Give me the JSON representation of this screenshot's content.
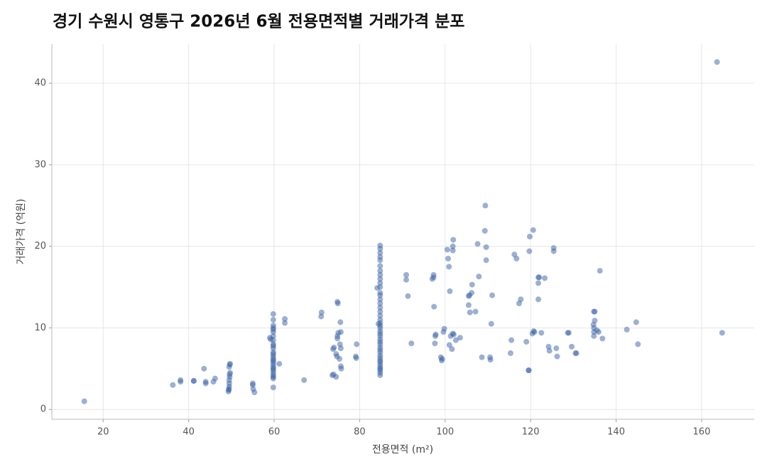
{
  "chart_data": {
    "type": "scatter",
    "title": "경기 수원시 영통구 2026년 6월 전용면적별 거래가격 분포",
    "x_label": "전용면적 (m²)",
    "y_label": "거래가격 (억원)",
    "color": "#3a62a8",
    "grid": true,
    "xlim": [
      8,
      172.3
    ],
    "ylim": [
      -1.2,
      44.8
    ],
    "xticks": [
      20,
      40,
      60,
      80,
      100,
      120,
      140,
      160
    ],
    "yticks": [
      0,
      10,
      20,
      30,
      40
    ],
    "x": [
      15.6,
      36.3,
      38.1,
      38.1,
      41.2,
      41.2,
      43.6,
      44.0,
      44.0,
      45.8,
      46.2,
      49.3,
      49.4,
      49.5,
      49.5,
      49.5,
      49.6,
      49.6,
      49.7,
      49.5,
      49.6,
      49.7,
      49.4,
      55.0,
      55.0,
      55.1,
      55.4,
      59.0,
      59.2,
      59.8,
      59.8,
      59.8,
      59.8,
      59.8,
      59.8,
      59.8,
      59.8,
      59.8,
      59.8,
      59.8,
      59.8,
      59.8,
      59.8,
      59.8,
      59.8,
      59.8,
      59.8,
      59.8,
      59.8,
      59.8,
      59.8,
      59.8,
      59.8,
      59.8,
      59.8,
      61.2,
      62.5,
      62.5,
      67.0,
      71.0,
      71.1,
      73.6,
      73.9,
      74.0,
      73.8,
      74.5,
      74.5,
      74.7,
      74.8,
      74.8,
      75.0,
      74.9,
      74.8,
      75.4,
      75.6,
      75.5,
      75.6,
      75.7,
      75.6,
      75.3,
      79.2,
      79.3,
      79.1,
      84.1,
      84.4,
      84.8,
      84.8,
      84.8,
      84.8,
      84.8,
      84.8,
      84.8,
      84.8,
      84.8,
      84.8,
      84.8,
      84.8,
      84.8,
      84.8,
      84.8,
      84.8,
      84.8,
      84.8,
      84.8,
      84.8,
      84.8,
      84.8,
      84.8,
      84.8,
      84.8,
      84.8,
      84.8,
      84.8,
      84.8,
      84.8,
      84.8,
      84.8,
      84.8,
      84.8,
      84.8,
      84.8,
      84.8,
      84.8,
      84.8,
      84.8,
      84.8,
      90.9,
      90.9,
      91.3,
      92.1,
      97.0,
      97.3,
      97.3,
      97.4,
      97.6,
      97.7,
      97.8,
      99.2,
      99.3,
      99.0,
      99.8,
      99.6,
      100.5,
      100.7,
      100.9,
      101.1,
      101.0,
      101.3,
      101.6,
      101.8,
      101.8,
      101.8,
      101.9,
      102.0,
      102.5,
      103.5,
      105.5,
      105.5,
      105.8,
      105.7,
      106.2,
      106.3,
      107.1,
      107.6,
      107.9,
      108.6,
      109.3,
      109.4,
      109.6,
      109.6,
      110.6,
      110.5,
      110.8,
      111.0,
      115.3,
      115.5,
      116.2,
      116.7,
      117.3,
      117.7,
      119.0,
      119.6,
      119.5,
      119.7,
      119.8,
      120.6,
      120.4,
      120.7,
      120.9,
      121.8,
      122.0,
      121.8,
      121.8,
      122.5,
      123.3,
      124.2,
      124.4,
      125.4,
      125.4,
      126.0,
      126.2,
      128.7,
      128.9,
      129.6,
      130.5,
      130.7,
      134.8,
      135.0,
      134.7,
      134.8,
      134.8,
      134.8,
      135.0,
      135.5,
      135.9,
      136.2,
      136.8,
      142.5,
      144.7,
      145.1,
      163.6,
      164.8
    ],
    "values": [
      1.0,
      3.0,
      3.4,
      3.6,
      3.5,
      3.5,
      5.0,
      3.2,
      3.4,
      3.4,
      3.8,
      2.2,
      2.5,
      2.8,
      3.2,
      3.6,
      4.0,
      4.3,
      4.5,
      5.2,
      5.5,
      5.6,
      2.4,
      3.0,
      3.2,
      2.5,
      2.1,
      8.8,
      8.6,
      2.7,
      3.8,
      4.0,
      4.2,
      4.5,
      4.8,
      5.0,
      5.2,
      5.5,
      5.8,
      6.0,
      6.2,
      6.5,
      6.8,
      7.0,
      7.5,
      7.8,
      8.0,
      8.5,
      9.0,
      9.5,
      9.8,
      10.0,
      10.3,
      11.0,
      11.7,
      5.6,
      10.6,
      11.1,
      3.6,
      11.4,
      11.9,
      4.2,
      4.3,
      7.6,
      7.4,
      4.0,
      6.8,
      6.5,
      8.7,
      9.0,
      9.4,
      13.0,
      13.2,
      8.0,
      9.5,
      10.7,
      7.5,
      5.0,
      5.3,
      6.2,
      6.3,
      8.0,
      6.5,
      14.9,
      10.5,
      4.2,
      4.5,
      4.8,
      5.0,
      5.2,
      5.5,
      5.8,
      6.0,
      6.3,
      6.6,
      7.0,
      7.3,
      7.6,
      8.0,
      8.3,
      8.6,
      9.0,
      9.3,
      9.6,
      10.0,
      10.3,
      10.6,
      11.0,
      11.5,
      12.0,
      12.5,
      13.0,
      13.5,
      14.0,
      14.3,
      15.0,
      15.5,
      16.0,
      16.5,
      17.0,
      17.6,
      18.3,
      18.7,
      19.2,
      19.7,
      20.1,
      16.5,
      15.9,
      13.9,
      8.1,
      16.0,
      16.5,
      16.2,
      12.6,
      8.1,
      9.0,
      9.2,
      6.0,
      6.2,
      6.4,
      9.9,
      9.5,
      19.6,
      18.5,
      17.5,
      14.5,
      7.9,
      9.0,
      7.4,
      9.3,
      19.5,
      20.0,
      20.8,
      9.2,
      8.5,
      8.8,
      12.8,
      13.9,
      11.9,
      14.0,
      14.3,
      15.3,
      12.0,
      20.3,
      16.3,
      6.4,
      21.9,
      25.0,
      19.9,
      18.3,
      6.1,
      6.4,
      10.5,
      14.0,
      6.9,
      8.5,
      19.0,
      18.5,
      13.0,
      13.5,
      8.3,
      4.8,
      4.8,
      19.4,
      21.2,
      22.0,
      9.3,
      9.6,
      9.5,
      16.2,
      16.2,
      15.5,
      13.5,
      9.4,
      16.1,
      7.7,
      7.2,
      19.8,
      19.4,
      7.5,
      6.5,
      9.4,
      9.4,
      7.7,
      6.9,
      6.9,
      12.0,
      12.0,
      10.4,
      10.0,
      9.5,
      9.0,
      10.9,
      9.7,
      9.5,
      17.0,
      8.7,
      9.8,
      10.7,
      8.0,
      42.6,
      9.4
    ]
  }
}
